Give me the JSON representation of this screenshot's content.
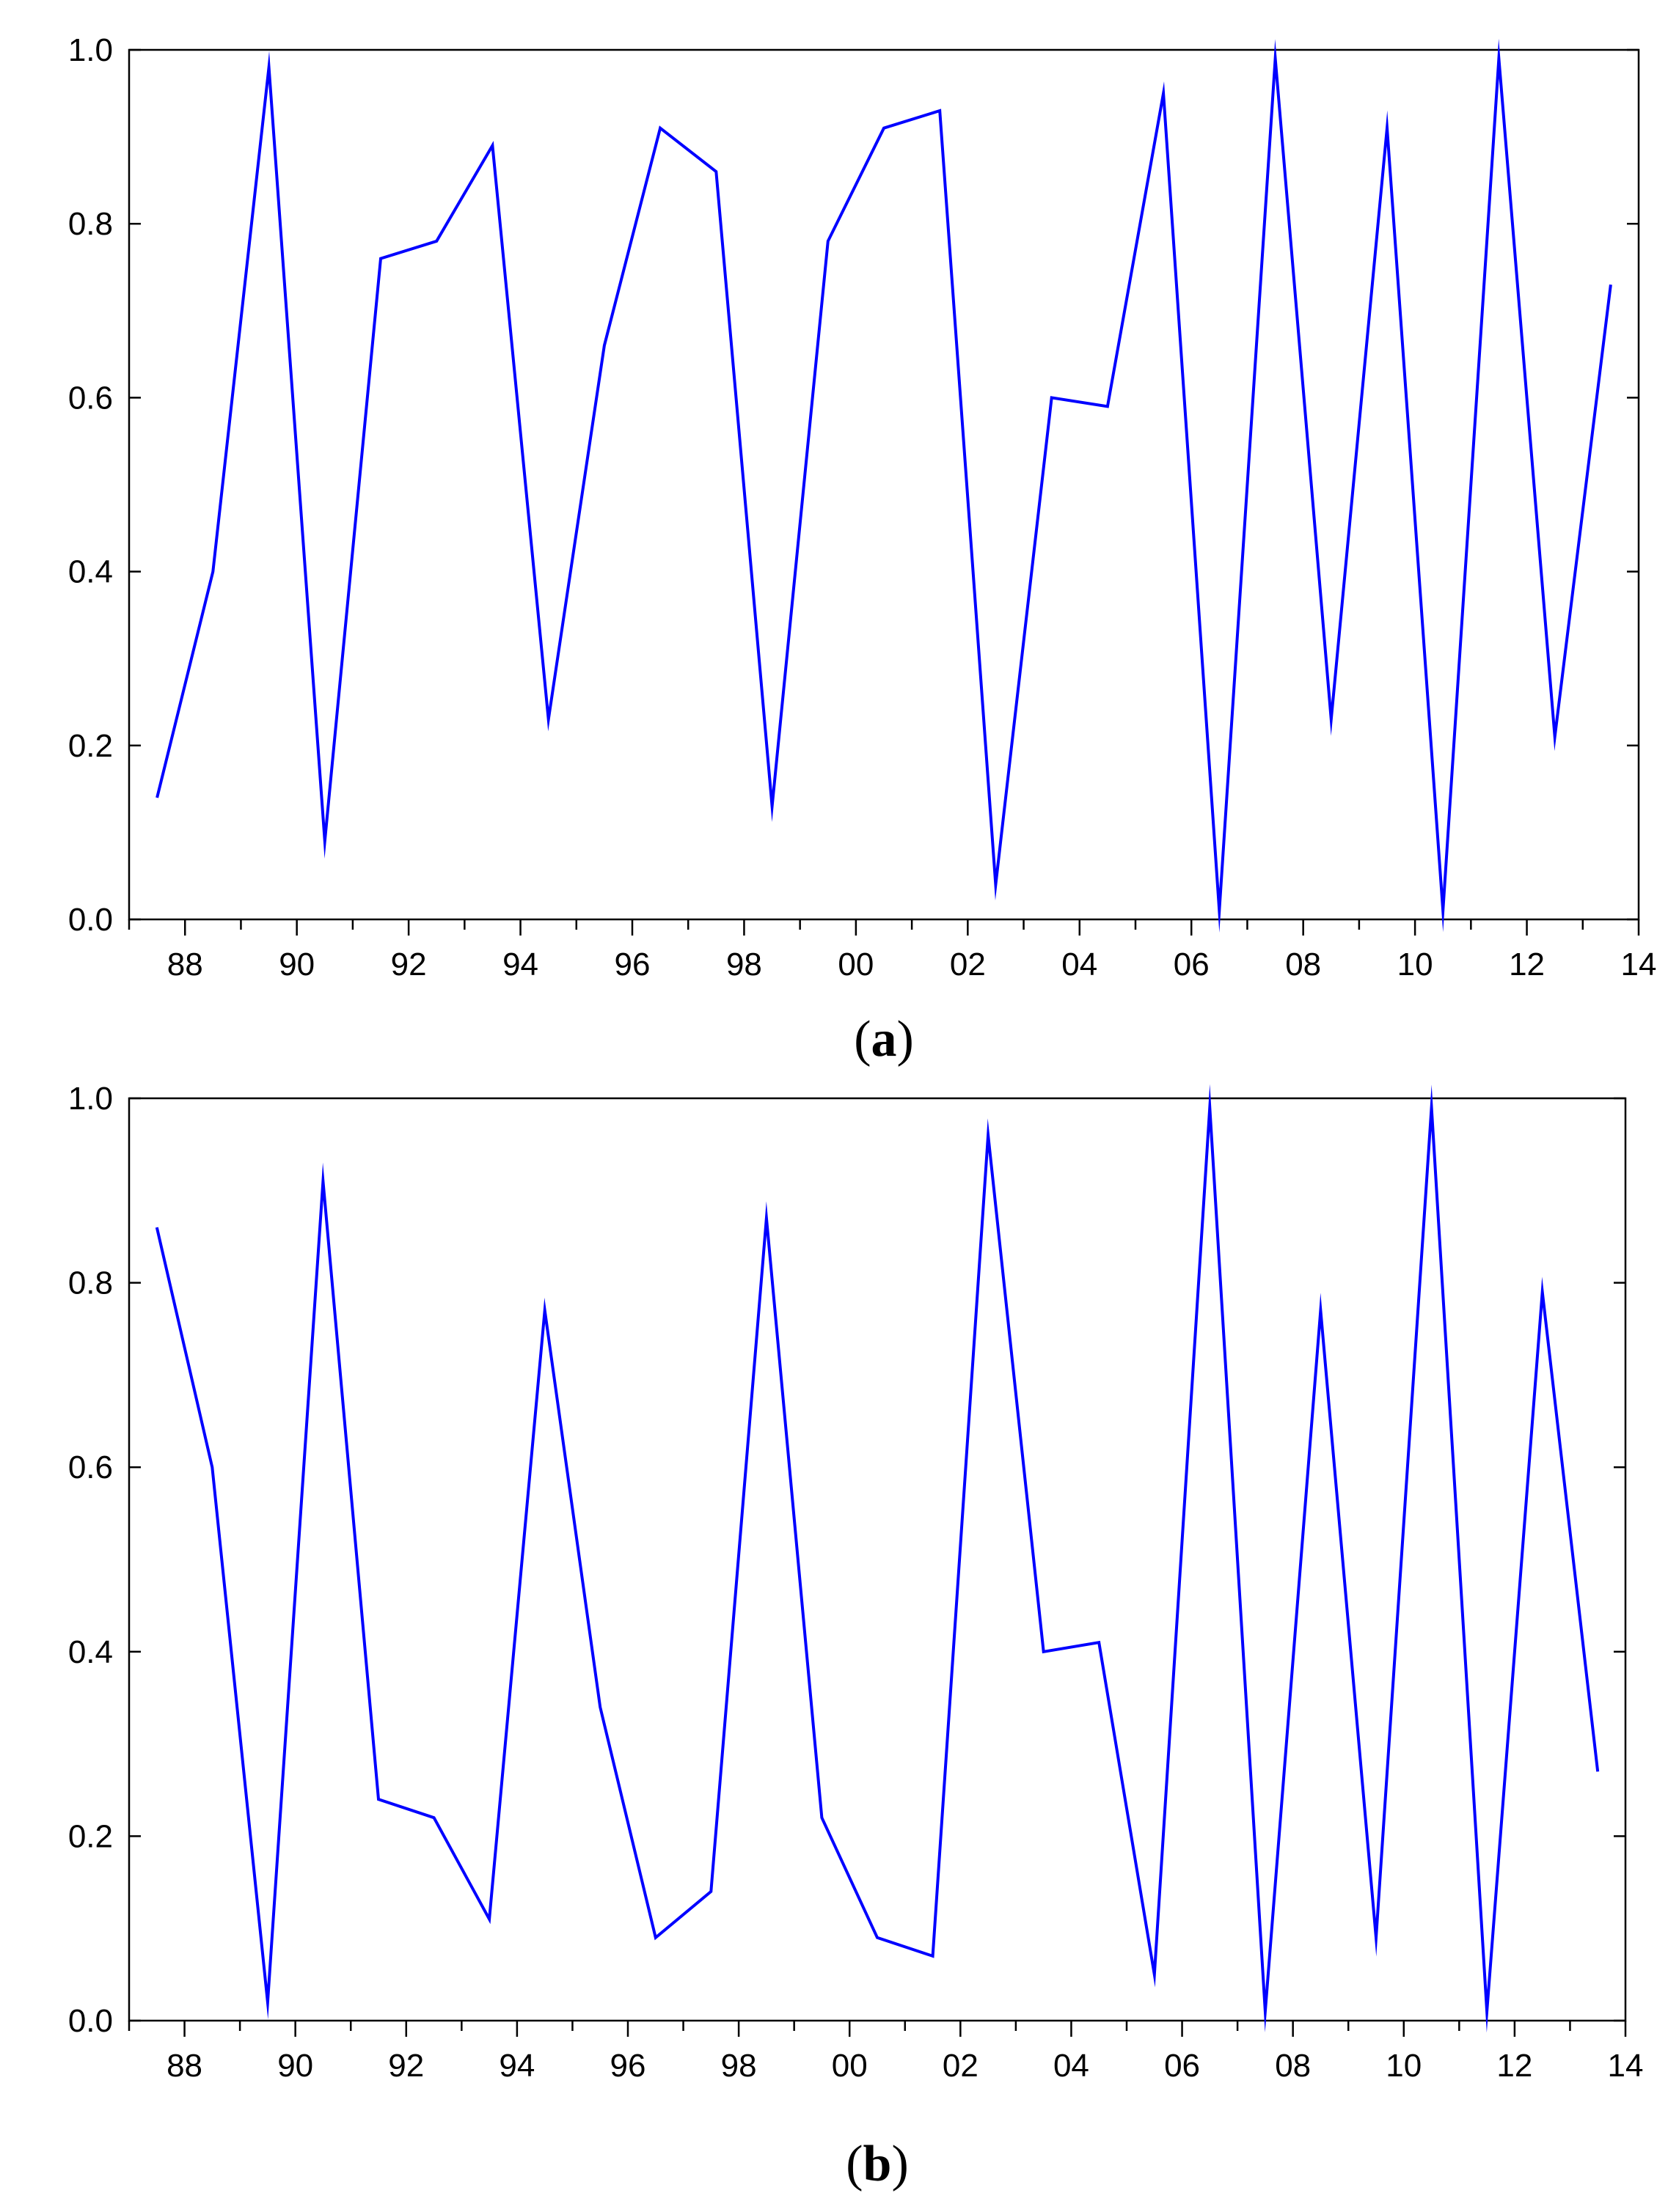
{
  "chart_data": [
    {
      "type": "line",
      "caption": "a",
      "x_tick_labels": [
        "88",
        "90",
        "92",
        "94",
        "96",
        "98",
        "00",
        "02",
        "04",
        "06",
        "08",
        "10",
        "12",
        "14"
      ],
      "y_tick_labels": [
        "0.0",
        "0.2",
        "0.4",
        "0.6",
        "0.8",
        "1.0"
      ],
      "xlim": [
        1987,
        2014
      ],
      "ylim": [
        0,
        1
      ],
      "grid": false,
      "legend": "none",
      "line_color": "#0000ff",
      "series": [
        {
          "x": [
            1987.5,
            1988.5,
            1989.5,
            1990.5,
            1991.5,
            1992.5,
            1993.5,
            1994.5,
            1995.5,
            1996.5,
            1997.5,
            1998.5,
            1999.5,
            2000.5,
            2001.5,
            2002.5,
            2003.5,
            2004.5,
            2005.5,
            2006.5,
            2007.5,
            2008.5,
            2009.5,
            2010.5,
            2011.5,
            2012.5,
            2013.5
          ],
          "y": [
            0.14,
            0.4,
            0.98,
            0.09,
            0.76,
            0.78,
            0.89,
            0.23,
            0.66,
            0.91,
            0.86,
            0.13,
            0.78,
            0.91,
            0.93,
            0.04,
            0.6,
            0.59,
            0.95,
            0.01,
            0.99,
            0.23,
            0.91,
            0.01,
            0.99,
            0.21,
            0.73
          ]
        }
      ]
    },
    {
      "type": "line",
      "caption": "b",
      "x_tick_labels": [
        "88",
        "90",
        "92",
        "94",
        "96",
        "98",
        "00",
        "02",
        "04",
        "06",
        "08",
        "10",
        "12",
        "14"
      ],
      "y_tick_labels": [
        "0.0",
        "0.2",
        "0.4",
        "0.6",
        "0.8",
        "1.0"
      ],
      "xlim": [
        1987,
        2014
      ],
      "ylim": [
        0,
        1
      ],
      "grid": false,
      "legend": "none",
      "line_color": "#0000ff",
      "series": [
        {
          "x": [
            1987.5,
            1988.5,
            1989.5,
            1990.5,
            1991.5,
            1992.5,
            1993.5,
            1994.5,
            1995.5,
            1996.5,
            1997.5,
            1998.5,
            1999.5,
            2000.5,
            2001.5,
            2002.5,
            2003.5,
            2004.5,
            2005.5,
            2006.5,
            2007.5,
            2008.5,
            2009.5,
            2010.5,
            2011.5,
            2012.5,
            2013.5
          ],
          "y": [
            0.86,
            0.6,
            0.02,
            0.91,
            0.24,
            0.22,
            0.11,
            0.77,
            0.34,
            0.09,
            0.14,
            0.87,
            0.22,
            0.09,
            0.07,
            0.96,
            0.4,
            0.41,
            0.05,
            0.99,
            0.01,
            0.77,
            0.09,
            0.99,
            0.01,
            0.79,
            0.27
          ]
        }
      ]
    }
  ]
}
